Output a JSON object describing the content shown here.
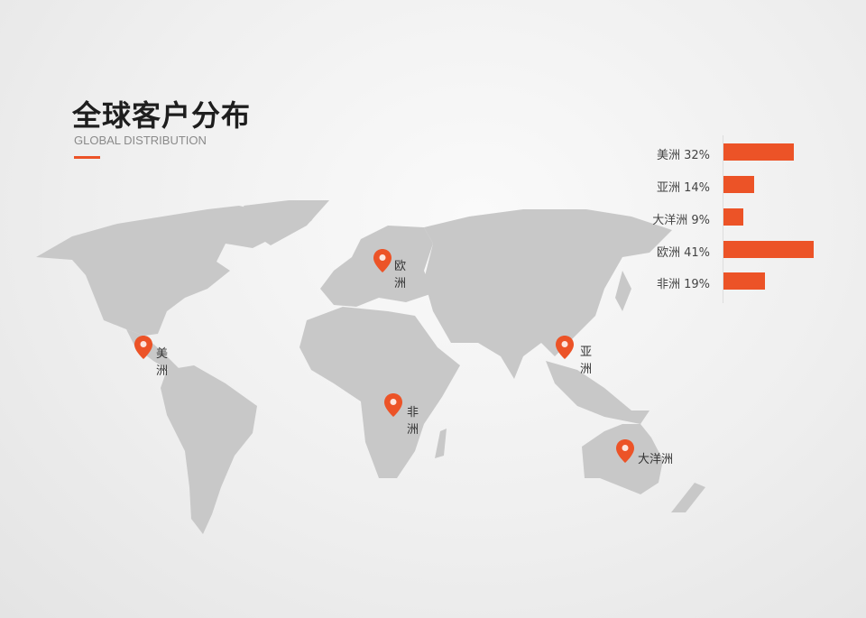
{
  "header": {
    "title": "全球客户分布",
    "subtitle": "GLOBAL DISTRIBUTION"
  },
  "colors": {
    "accent": "#ec5327",
    "land": "#c8c8c8"
  },
  "pins": [
    {
      "label": "欧洲",
      "icon": "map-pin-icon"
    },
    {
      "label": "美洲",
      "icon": "map-pin-icon"
    },
    {
      "label": "亚洲",
      "icon": "map-pin-icon"
    },
    {
      "label": "非洲",
      "icon": "map-pin-icon"
    },
    {
      "label": "大洋洲",
      "icon": "map-pin-icon"
    }
  ],
  "chart_data": {
    "type": "bar",
    "orientation": "horizontal",
    "categories": [
      "美洲",
      "亚洲",
      "大洋洲",
      "欧洲",
      "非洲"
    ],
    "labels": [
      "美洲 32%",
      "亚洲 14%",
      "大洋洲 9%",
      "欧洲 41%",
      "非洲 19%"
    ],
    "values": [
      32,
      14,
      9,
      41,
      19
    ],
    "unit": "%"
  }
}
